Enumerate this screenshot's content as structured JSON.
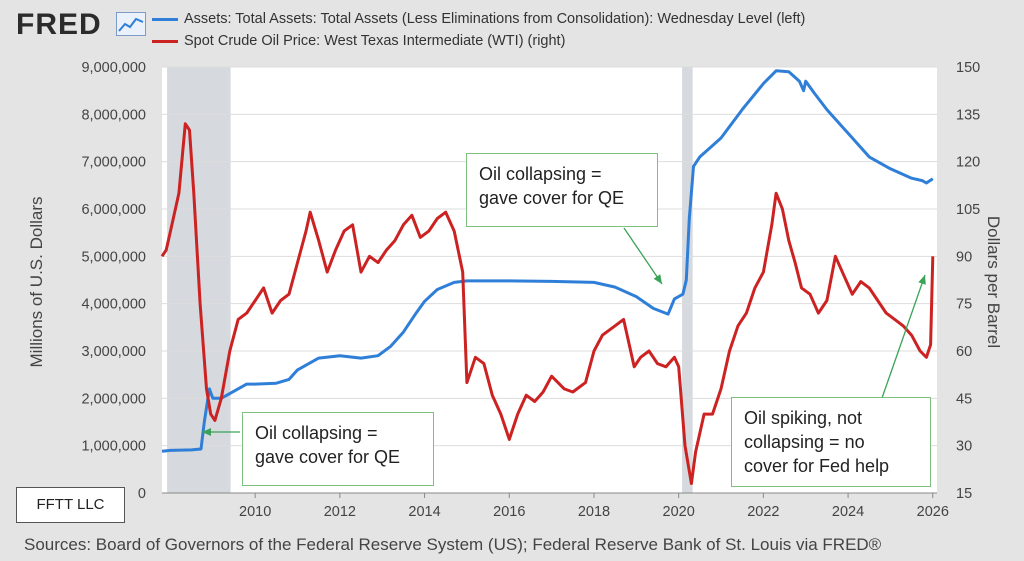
{
  "header": {
    "logo_text": "FRED",
    "logo_icon": "line-chart-icon"
  },
  "footer": {
    "sources": "Sources: Board of Governors of the Federal Reserve System (US); Federal Reserve Bank of St. Louis via FRED®",
    "brand_label": "FFTT LLC"
  },
  "annotations": [
    {
      "id": "qe-2009",
      "lines": [
        "Oil collapsing =",
        "gave cover for QE"
      ]
    },
    {
      "id": "qe-2020",
      "lines": [
        "Oil collapsing =",
        "gave cover for QE"
      ]
    },
    {
      "id": "spike-2026",
      "lines": [
        "Oil spiking, not",
        "collapsing = no",
        "cover for Fed help"
      ]
    }
  ],
  "chart_data": {
    "type": "line",
    "xlim": [
      2007.8,
      2026.1
    ],
    "x_ticks": [
      2010,
      2012,
      2014,
      2016,
      2018,
      2020,
      2022,
      2024,
      2026
    ],
    "left_axis": {
      "label": "Millions of U.S. Dollars",
      "ylim": [
        0,
        9000000
      ],
      "ticks": [
        0,
        1000000,
        2000000,
        3000000,
        4000000,
        5000000,
        6000000,
        7000000,
        8000000,
        9000000
      ],
      "tick_labels": [
        "0",
        "1,000,000",
        "2,000,000",
        "3,000,000",
        "4,000,000",
        "5,000,000",
        "6,000,000",
        "7,000,000",
        "8,000,000",
        "9,000,000"
      ]
    },
    "right_axis": {
      "label": "Dollars per Barrel",
      "ylim": [
        15,
        150
      ],
      "ticks": [
        15,
        30,
        45,
        60,
        75,
        90,
        105,
        120,
        135,
        150
      ]
    },
    "recessions": [
      [
        2007.92,
        2009.42
      ],
      [
        2020.08,
        2020.33
      ]
    ],
    "grid": "horizontal",
    "series": [
      {
        "name": "Assets: Total Assets: Total Assets (Less Eliminations from Consolidation): Wednesday Level (left)",
        "axis": "left",
        "color": "#2f7fd8",
        "x": [
          2007.8,
          2008.0,
          2008.5,
          2008.72,
          2008.8,
          2008.92,
          2009.0,
          2009.2,
          2009.5,
          2009.8,
          2010.0,
          2010.5,
          2010.8,
          2011.0,
          2011.5,
          2012.0,
          2012.5,
          2012.9,
          2013.2,
          2013.5,
          2013.8,
          2014.0,
          2014.3,
          2014.7,
          2015.0,
          2016.0,
          2017.0,
          2018.0,
          2018.5,
          2019.0,
          2019.4,
          2019.75,
          2019.9,
          2020.1,
          2020.18,
          2020.25,
          2020.35,
          2020.5,
          2020.75,
          2021.0,
          2021.5,
          2022.0,
          2022.3,
          2022.6,
          2022.85,
          2022.95,
          2023.0,
          2023.2,
          2023.5,
          2024.0,
          2024.5,
          2025.0,
          2025.5,
          2025.75,
          2025.85,
          2026.0
        ],
        "y": [
          880000,
          900000,
          910000,
          930000,
          1500000,
          2200000,
          2000000,
          2000000,
          2150000,
          2300000,
          2300000,
          2320000,
          2400000,
          2600000,
          2850000,
          2900000,
          2850000,
          2900000,
          3100000,
          3400000,
          3800000,
          4050000,
          4300000,
          4450000,
          4480000,
          4480000,
          4470000,
          4450000,
          4350000,
          4150000,
          3900000,
          3780000,
          4100000,
          4200000,
          4500000,
          5800000,
          6900000,
          7100000,
          7300000,
          7500000,
          8100000,
          8650000,
          8920000,
          8900000,
          8700000,
          8500000,
          8700000,
          8450000,
          8100000,
          7600000,
          7100000,
          6850000,
          6650000,
          6600000,
          6550000,
          6640000
        ]
      },
      {
        "name": "Spot Crude Oil Price: West Texas Intermediate (WTI) (right)",
        "axis": "right",
        "color": "#cc2222",
        "x": [
          2007.8,
          2007.9,
          2008.0,
          2008.2,
          2008.35,
          2008.45,
          2008.55,
          2008.7,
          2008.85,
          2008.95,
          2009.05,
          2009.2,
          2009.4,
          2009.6,
          2009.8,
          2010.0,
          2010.2,
          2010.4,
          2010.6,
          2010.8,
          2011.0,
          2011.2,
          2011.3,
          2011.5,
          2011.7,
          2011.9,
          2012.1,
          2012.3,
          2012.5,
          2012.7,
          2012.9,
          2013.1,
          2013.3,
          2013.5,
          2013.7,
          2013.9,
          2014.1,
          2014.3,
          2014.5,
          2014.7,
          2014.9,
          2015.0,
          2015.2,
          2015.4,
          2015.6,
          2015.8,
          2016.0,
          2016.2,
          2016.4,
          2016.6,
          2016.8,
          2017.0,
          2017.3,
          2017.5,
          2017.8,
          2018.0,
          2018.2,
          2018.5,
          2018.7,
          2018.95,
          2019.1,
          2019.3,
          2019.5,
          2019.7,
          2019.9,
          2020.0,
          2020.15,
          2020.3,
          2020.4,
          2020.6,
          2020.8,
          2021.0,
          2021.2,
          2021.4,
          2021.6,
          2021.8,
          2022.0,
          2022.2,
          2022.3,
          2022.45,
          2022.6,
          2022.75,
          2022.9,
          2023.1,
          2023.3,
          2023.5,
          2023.7,
          2023.9,
          2024.1,
          2024.3,
          2024.5,
          2024.7,
          2024.9,
          2025.1,
          2025.3,
          2025.5,
          2025.7,
          2025.85,
          2025.95,
          2026.0
        ],
        "y": [
          90,
          92,
          98,
          110,
          132,
          130,
          110,
          75,
          48,
          40,
          38,
          45,
          60,
          70,
          72,
          76,
          80,
          72,
          76,
          78,
          88,
          98,
          104,
          95,
          85,
          92,
          98,
          100,
          85,
          90,
          88,
          92,
          95,
          100,
          103,
          96,
          98,
          102,
          104,
          98,
          85,
          50,
          58,
          56,
          46,
          40,
          32,
          40,
          46,
          44,
          47,
          52,
          48,
          47,
          50,
          60,
          65,
          68,
          70,
          55,
          58,
          60,
          56,
          55,
          58,
          55,
          30,
          18,
          28,
          40,
          40,
          48,
          60,
          68,
          72,
          80,
          85,
          100,
          110,
          105,
          95,
          88,
          80,
          78,
          72,
          76,
          90,
          84,
          78,
          82,
          80,
          76,
          72,
          70,
          68,
          65,
          60,
          58,
          62,
          90
        ]
      }
    ]
  }
}
